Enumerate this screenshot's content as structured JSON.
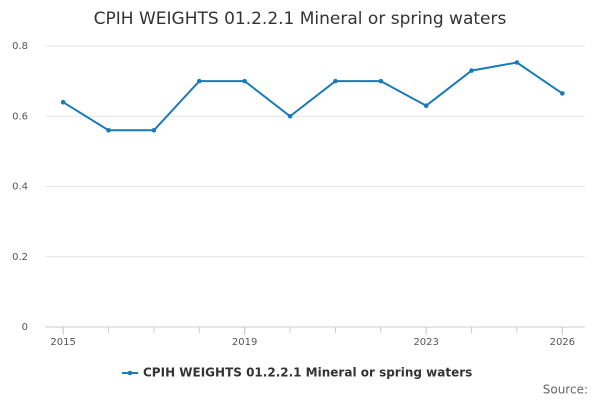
{
  "chart_data": {
    "type": "line",
    "title": "CPIH WEIGHTS 01.2.2.1 Mineral or spring waters",
    "x": [
      2015,
      2016,
      2017,
      2018,
      2019,
      2020,
      2021,
      2022,
      2023,
      2024,
      2025,
      2026
    ],
    "series": [
      {
        "name": "CPIH WEIGHTS 01.2.2.1 Mineral or spring waters",
        "color": "#1a7ab5",
        "values": [
          0.64,
          0.56,
          0.56,
          0.7,
          0.7,
          0.6,
          0.7,
          0.7,
          0.63,
          0.73,
          0.753,
          0.665
        ]
      }
    ],
    "xlim": [
      2014.6,
      2026.5
    ],
    "xticks": [
      2015,
      2019,
      2023,
      2026
    ],
    "ylim": [
      0,
      0.8
    ],
    "yticks": [
      0,
      0.2,
      0.4,
      0.6,
      0.8
    ],
    "grid": true,
    "legend": "bottom",
    "source": "Source:"
  }
}
